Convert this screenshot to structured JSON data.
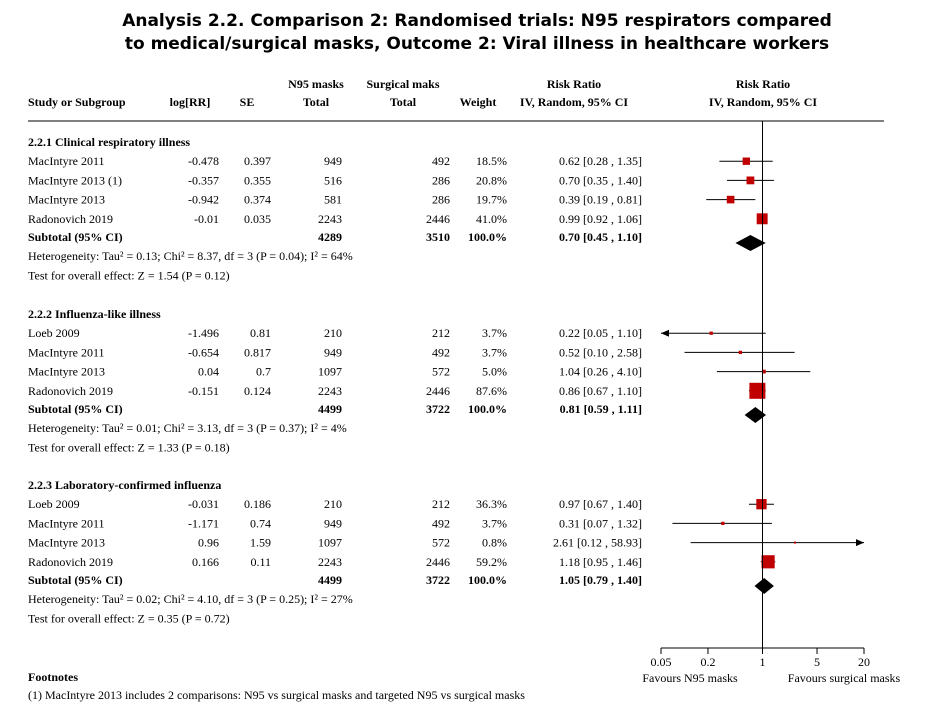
{
  "title": {
    "line1": "Analysis 2.2.   Comparison 2: Randomised trials: N95 respirators compared",
    "line2": "to medical/surgical masks, Outcome 2: Viral illness in healthcare workers"
  },
  "header": {
    "study": "Study or Subgroup",
    "logrr": "log[RR]",
    "se": "SE",
    "n95_top": "N95 masks",
    "n95_bottom": "Total",
    "surg_top": "Surgical maks",
    "surg_bottom": "Total",
    "weight": "Weight",
    "rr_top": "Risk Ratio",
    "rr_bottom": "IV, Random, 95% CI",
    "plot_top": "Risk Ratio",
    "plot_bottom": "IV, Random, 95% CI"
  },
  "chart_data": {
    "type": "forest",
    "scale": "log",
    "x_ticks": [
      "0.05",
      "0.2",
      "1",
      "5",
      "20"
    ],
    "xlim": [
      0.05,
      20
    ],
    "favours_left": "Favours N95 masks",
    "favours_right": "Favours surgical masks",
    "subgroups": [
      {
        "name": "2.2.1 Clinical respiratory illness",
        "studies": [
          {
            "study": "MacIntyre 2011",
            "logrr": "-0.478",
            "se": "0.397",
            "n95": "949",
            "surg": "492",
            "weight": "18.5%",
            "ci": "0.62 [0.28 , 1.35]",
            "rr": 0.62,
            "lo": 0.28,
            "hi": 1.35,
            "w": 18.5
          },
          {
            "study": "MacIntyre 2013 (1)",
            "logrr": "-0.357",
            "se": "0.355",
            "n95": "516",
            "surg": "286",
            "weight": "20.8%",
            "ci": "0.70 [0.35 , 1.40]",
            "rr": 0.7,
            "lo": 0.35,
            "hi": 1.4,
            "w": 20.8
          },
          {
            "study": "MacIntyre 2013",
            "logrr": "-0.942",
            "se": "0.374",
            "n95": "581",
            "surg": "286",
            "weight": "19.7%",
            "ci": "0.39 [0.19 , 0.81]",
            "rr": 0.39,
            "lo": 0.19,
            "hi": 0.81,
            "w": 19.7
          },
          {
            "study": "Radonovich 2019",
            "logrr": "-0.01",
            "se": "0.035",
            "n95": "2243",
            "surg": "2446",
            "weight": "41.0%",
            "ci": "0.99 [0.92 , 1.06]",
            "rr": 0.99,
            "lo": 0.92,
            "hi": 1.06,
            "w": 41.0
          }
        ],
        "subtotal": {
          "label": "Subtotal (95% CI)",
          "n95": "4289",
          "surg": "3510",
          "weight": "100.0%",
          "ci": "0.70 [0.45 , 1.10]",
          "rr": 0.7,
          "lo": 0.45,
          "hi": 1.1
        },
        "heterogeneity": "Heterogeneity: Tau² = 0.13; Chi² = 8.37, df = 3 (P = 0.04); I² = 64%",
        "overall": "Test for overall effect: Z = 1.54 (P = 0.12)"
      },
      {
        "name": "2.2.2 Influenza-like illness",
        "studies": [
          {
            "study": "Loeb 2009",
            "logrr": "-1.496",
            "se": "0.81",
            "n95": "210",
            "surg": "212",
            "weight": "3.7%",
            "ci": "0.22 [0.05 , 1.10]",
            "rr": 0.22,
            "lo": 0.05,
            "hi": 1.1,
            "w": 3.7,
            "arrow_left": true
          },
          {
            "study": "MacIntyre 2011",
            "logrr": "-0.654",
            "se": "0.817",
            "n95": "949",
            "surg": "492",
            "weight": "3.7%",
            "ci": "0.52 [0.10 , 2.58]",
            "rr": 0.52,
            "lo": 0.1,
            "hi": 2.58,
            "w": 3.7
          },
          {
            "study": "MacIntyre 2013",
            "logrr": "0.04",
            "se": "0.7",
            "n95": "1097",
            "surg": "572",
            "weight": "5.0%",
            "ci": "1.04 [0.26 , 4.10]",
            "rr": 1.04,
            "lo": 0.26,
            "hi": 4.1,
            "w": 5.0
          },
          {
            "study": "Radonovich 2019",
            "logrr": "-0.151",
            "se": "0.124",
            "n95": "2243",
            "surg": "2446",
            "weight": "87.6%",
            "ci": "0.86 [0.67 , 1.10]",
            "rr": 0.86,
            "lo": 0.67,
            "hi": 1.1,
            "w": 87.6
          }
        ],
        "subtotal": {
          "label": "Subtotal (95% CI)",
          "n95": "4499",
          "surg": "3722",
          "weight": "100.0%",
          "ci": "0.81 [0.59 , 1.11]",
          "rr": 0.81,
          "lo": 0.59,
          "hi": 1.11
        },
        "heterogeneity": "Heterogeneity: Tau² = 0.01; Chi² = 3.13, df = 3 (P = 0.37); I² = 4%",
        "overall": "Test for overall effect: Z = 1.33 (P = 0.18)"
      },
      {
        "name": "2.2.3 Laboratory-confirmed influenza",
        "studies": [
          {
            "study": "Loeb 2009",
            "logrr": "-0.031",
            "se": "0.186",
            "n95": "210",
            "surg": "212",
            "weight": "36.3%",
            "ci": "0.97 [0.67 , 1.40]",
            "rr": 0.97,
            "lo": 0.67,
            "hi": 1.4,
            "w": 36.3
          },
          {
            "study": "MacIntyre 2011",
            "logrr": "-1.171",
            "se": "0.74",
            "n95": "949",
            "surg": "492",
            "weight": "3.7%",
            "ci": "0.31 [0.07 , 1.32]",
            "rr": 0.31,
            "lo": 0.07,
            "hi": 1.32,
            "w": 3.7
          },
          {
            "study": "MacIntyre 2013",
            "logrr": "0.96",
            "se": "1.59",
            "n95": "1097",
            "surg": "572",
            "weight": "0.8%",
            "ci": "2.61 [0.12 , 58.93]",
            "rr": 2.61,
            "lo": 0.12,
            "hi": 58.93,
            "w": 0.8,
            "arrow_right": true
          },
          {
            "study": "Radonovich 2019",
            "logrr": "0.166",
            "se": "0.11",
            "n95": "2243",
            "surg": "2446",
            "weight": "59.2%",
            "ci": "1.18 [0.95 , 1.46]",
            "rr": 1.18,
            "lo": 0.95,
            "hi": 1.46,
            "w": 59.2
          }
        ],
        "subtotal": {
          "label": "Subtotal (95% CI)",
          "n95": "4499",
          "surg": "3722",
          "weight": "100.0%",
          "ci": "1.05 [0.79 , 1.40]",
          "rr": 1.05,
          "lo": 0.79,
          "hi": 1.4
        },
        "heterogeneity": "Heterogeneity: Tau² = 0.02; Chi² = 4.10, df = 3 (P = 0.25); I² = 27%",
        "overall": "Test for overall effect: Z = 0.35 (P = 0.72)"
      }
    ]
  },
  "footnotes": {
    "heading": "Footnotes",
    "items": [
      "(1) MacIntyre 2013 includes 2 comparisons: N95 vs surgical masks and targeted N95 vs surgical masks"
    ]
  },
  "colors": {
    "square": "#c00000",
    "diamond": "#000000",
    "line": "#000000"
  }
}
